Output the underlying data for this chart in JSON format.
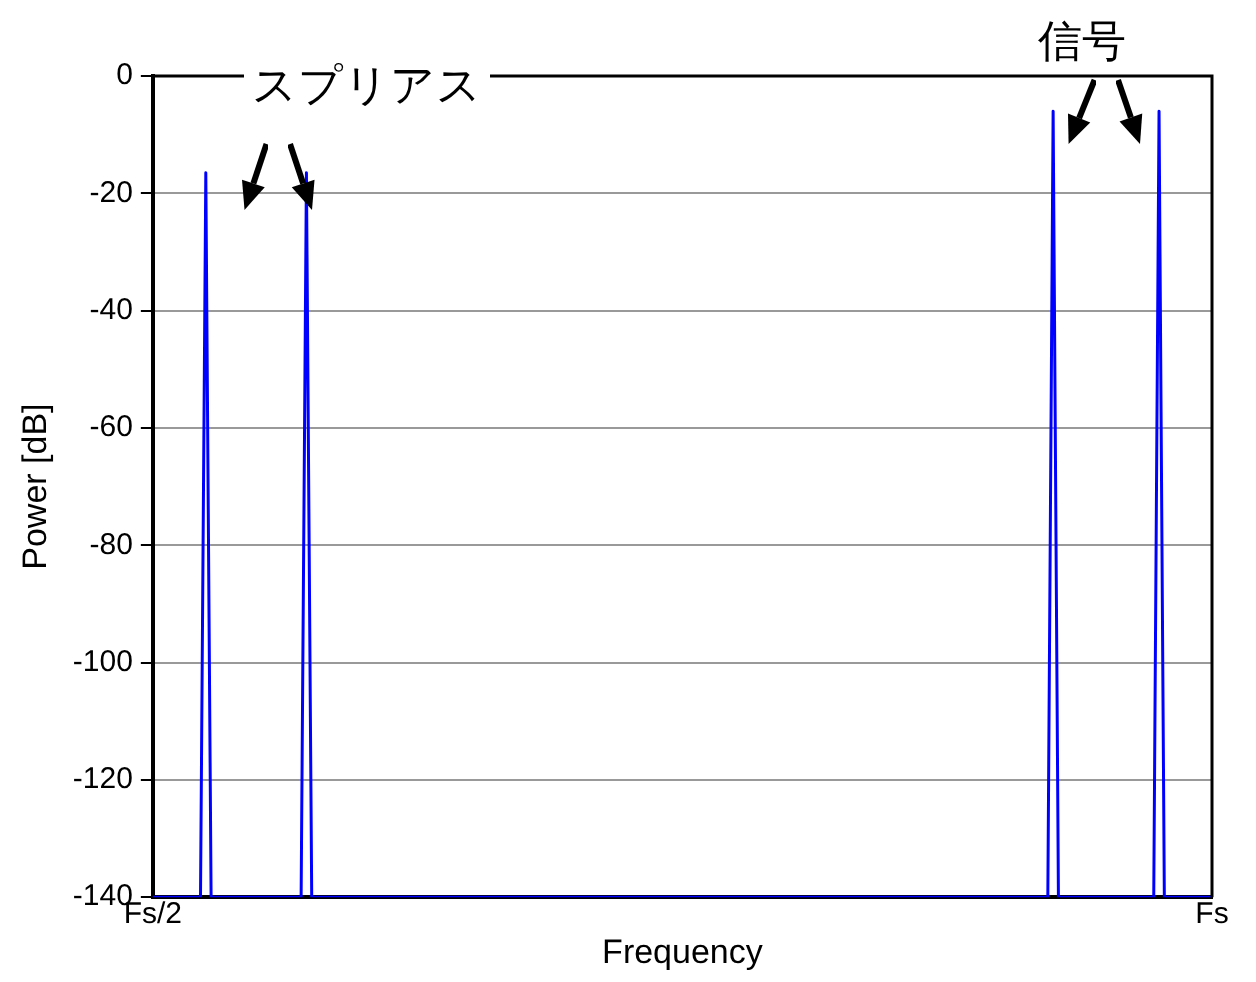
{
  "chart_data": {
    "type": "line",
    "xlabel": "Frequency",
    "ylabel": "Power [dB]",
    "annotations": [
      "スプリアス",
      "信号"
    ],
    "categories": [
      "Fs/2",
      null,
      null,
      null,
      null,
      null,
      null,
      null,
      null,
      null,
      null,
      null,
      null,
      null,
      null,
      null,
      null,
      null,
      null,
      null,
      null,
      null,
      null,
      null,
      null,
      null,
      null,
      null,
      null,
      null,
      null,
      null,
      null,
      null,
      null,
      null,
      null,
      null,
      null,
      null,
      null,
      null,
      null,
      null,
      null,
      null,
      null,
      null,
      null,
      null,
      null,
      null,
      null,
      null,
      null,
      null,
      null,
      null,
      null,
      null,
      null,
      null,
      null,
      null,
      null,
      null,
      null,
      null,
      null,
      null,
      null,
      null,
      null,
      null,
      null,
      null,
      null,
      null,
      null,
      null,
      null,
      null,
      null,
      null,
      null,
      null,
      null,
      null,
      null,
      null,
      null,
      null,
      null,
      null,
      null,
      null,
      null,
      null,
      null,
      null,
      null,
      null,
      null,
      null,
      null,
      null,
      null,
      null,
      null,
      null,
      null,
      null,
      null,
      null,
      null,
      null,
      null,
      null,
      null,
      null,
      null,
      null,
      null,
      null,
      null,
      null,
      null,
      null,
      null,
      null,
      null,
      null,
      null,
      null,
      null,
      null,
      null,
      null,
      null,
      null,
      null,
      null,
      null,
      null,
      null,
      null,
      null,
      null,
      null,
      null,
      null,
      null,
      null,
      null,
      null,
      null,
      null,
      null,
      null,
      null,
      null,
      null,
      null,
      null,
      null,
      null,
      null,
      null,
      null,
      null,
      null,
      null,
      null,
      null,
      null,
      null,
      null,
      null,
      null,
      null,
      null,
      null,
      null,
      null,
      null,
      null,
      null,
      null,
      null,
      null,
      null,
      null,
      null,
      null,
      null,
      null,
      null,
      null,
      null,
      null,
      "Fs"
    ],
    "ylim": [
      -140,
      0
    ],
    "yticks": [
      -140,
      -120,
      -100,
      -80,
      -60,
      -40,
      -20,
      0
    ],
    "grid": "y",
    "legend": false,
    "marker": "none",
    "line_style": "solid",
    "series": [
      {
        "color": "#0000ff",
        "values": [
          -140,
          -140,
          -140,
          -140,
          -140,
          -140,
          -140,
          -140,
          -140,
          -140,
          -16.5,
          -140,
          -140,
          -140,
          -140,
          -140,
          -140,
          -140,
          -140,
          -140,
          -140,
          -140,
          -140,
          -140,
          -140,
          -140,
          -140,
          -140,
          -140,
          -16.5,
          -140,
          -140,
          -140,
          -140,
          -140,
          -140,
          -140,
          -140,
          -140,
          -140,
          -140,
          -140,
          -140,
          -140,
          -140,
          -140,
          -140,
          -140,
          -140,
          -140,
          -140,
          -140,
          -140,
          -140,
          -140,
          -140,
          -140,
          -140,
          -140,
          -140,
          -140,
          -140,
          -140,
          -140,
          -140,
          -140,
          -140,
          -140,
          -140,
          -140,
          -140,
          -140,
          -140,
          -140,
          -140,
          -140,
          -140,
          -140,
          -140,
          -140,
          -140,
          -140,
          -140,
          -140,
          -140,
          -140,
          -140,
          -140,
          -140,
          -140,
          -140,
          -140,
          -140,
          -140,
          -140,
          -140,
          -140,
          -140,
          -140,
          -140,
          -140,
          -140,
          -140,
          -140,
          -140,
          -140,
          -140,
          -140,
          -140,
          -140,
          -140,
          -140,
          -140,
          -140,
          -140,
          -140,
          -140,
          -140,
          -140,
          -140,
          -140,
          -140,
          -140,
          -140,
          -140,
          -140,
          -140,
          -140,
          -140,
          -140,
          -140,
          -140,
          -140,
          -140,
          -140,
          -140,
          -140,
          -140,
          -140,
          -140,
          -140,
          -140,
          -140,
          -140,
          -140,
          -140,
          -140,
          -140,
          -140,
          -140,
          -140,
          -140,
          -140,
          -140,
          -140,
          -140,
          -140,
          -140,
          -140,
          -140,
          -140,
          -140,
          -140,
          -140,
          -140,
          -140,
          -140,
          -140,
          -140,
          -140,
          -6,
          -140,
          -140,
          -140,
          -140,
          -140,
          -140,
          -140,
          -140,
          -140,
          -140,
          -140,
          -140,
          -140,
          -140,
          -140,
          -140,
          -140,
          -140,
          -140,
          -6,
          -140,
          -140,
          -140,
          -140,
          -140,
          -140,
          -140,
          -140,
          -140,
          -140
        ]
      }
    ]
  }
}
